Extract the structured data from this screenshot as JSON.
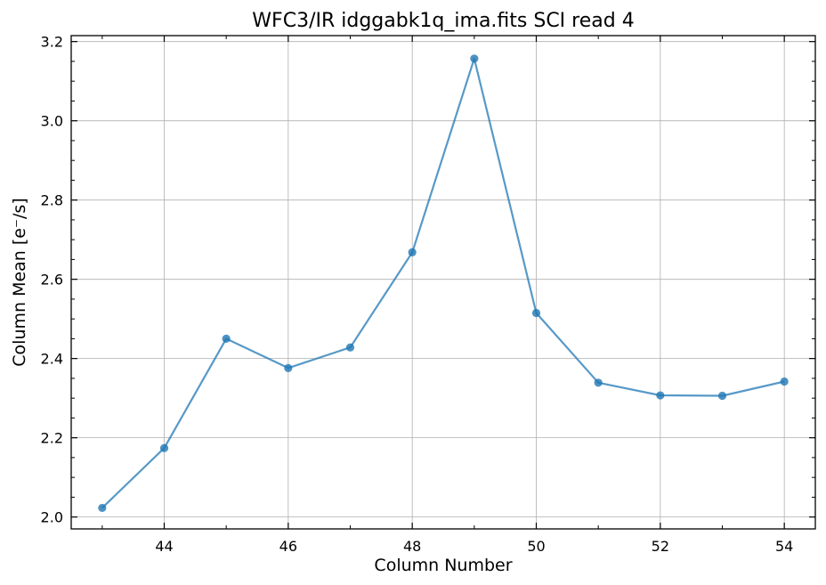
{
  "chart_data": {
    "type": "line",
    "title": "WFC3/IR idggabk1q_ima.fits SCI read 4",
    "xlabel": "Column Number",
    "ylabel": "Column Mean [e⁻/s]",
    "xlim": [
      42.5,
      54.5
    ],
    "ylim": [
      1.97,
      3.215
    ],
    "xticks": [
      44,
      46,
      48,
      50,
      52,
      54
    ],
    "xtick_labels": [
      "44",
      "46",
      "48",
      "50",
      "52",
      "54"
    ],
    "yticks": [
      2.0,
      2.2,
      2.4,
      2.6,
      2.8,
      3.0,
      3.2
    ],
    "ytick_labels": [
      "2.0",
      "2.2",
      "2.4",
      "2.6",
      "2.8",
      "3.0",
      "3.2"
    ],
    "grid": true,
    "series": [
      {
        "color": "#1f77b4",
        "x": [
          43,
          44,
          45,
          46,
          47,
          48,
          49,
          50,
          51,
          52,
          53,
          54
        ],
        "y": [
          2.023,
          2.174,
          2.45,
          2.376,
          2.428,
          2.668,
          3.157,
          2.515,
          2.339,
          2.307,
          2.306,
          2.342
        ]
      }
    ]
  }
}
